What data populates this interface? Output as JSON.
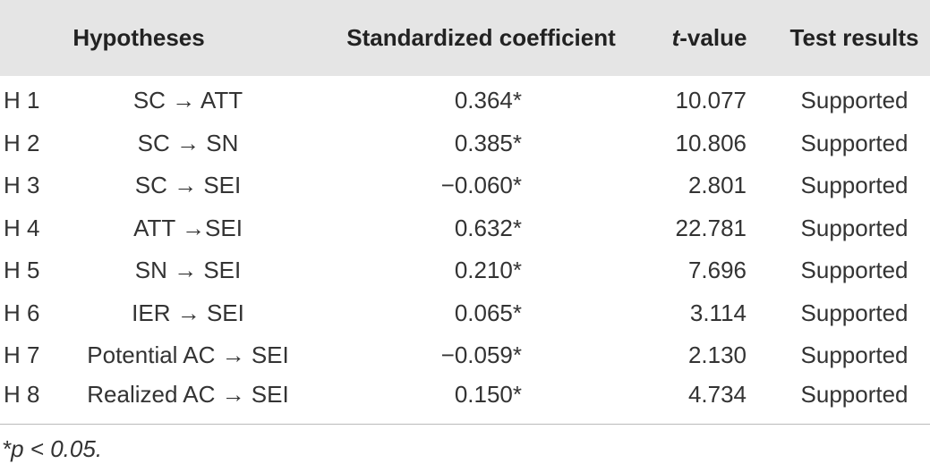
{
  "table": {
    "header": [
      "Hypotheses",
      "Standardized coefficient",
      "t-value",
      "Test results"
    ],
    "rows": [
      [
        "H 1",
        "SC → ATT",
        "0.364*",
        "10.077",
        "Supported"
      ],
      [
        "H 2",
        "SC → SN",
        "0.385*",
        "10.806",
        "Supported"
      ],
      [
        "H 3",
        "SC → SEI",
        "−0.060*",
        "2.801",
        "Supported"
      ],
      [
        "H 4",
        "ATT →SEI",
        "0.632*",
        "22.781",
        "Supported"
      ],
      [
        "H 5",
        "SN → SEI",
        "0.210*",
        "7.696",
        "Supported"
      ],
      [
        "H 6",
        "IER → SEI",
        "0.065*",
        "3.114",
        "Supported"
      ],
      [
        "H 7",
        "Potential AC → SEI",
        "−0.059*",
        "2.130",
        "Supported"
      ],
      [
        "H 8",
        "Realized AC → SEI",
        "0.150*",
        "4.734",
        "Supported"
      ]
    ],
    "footnote": "*p < 0.05."
  }
}
